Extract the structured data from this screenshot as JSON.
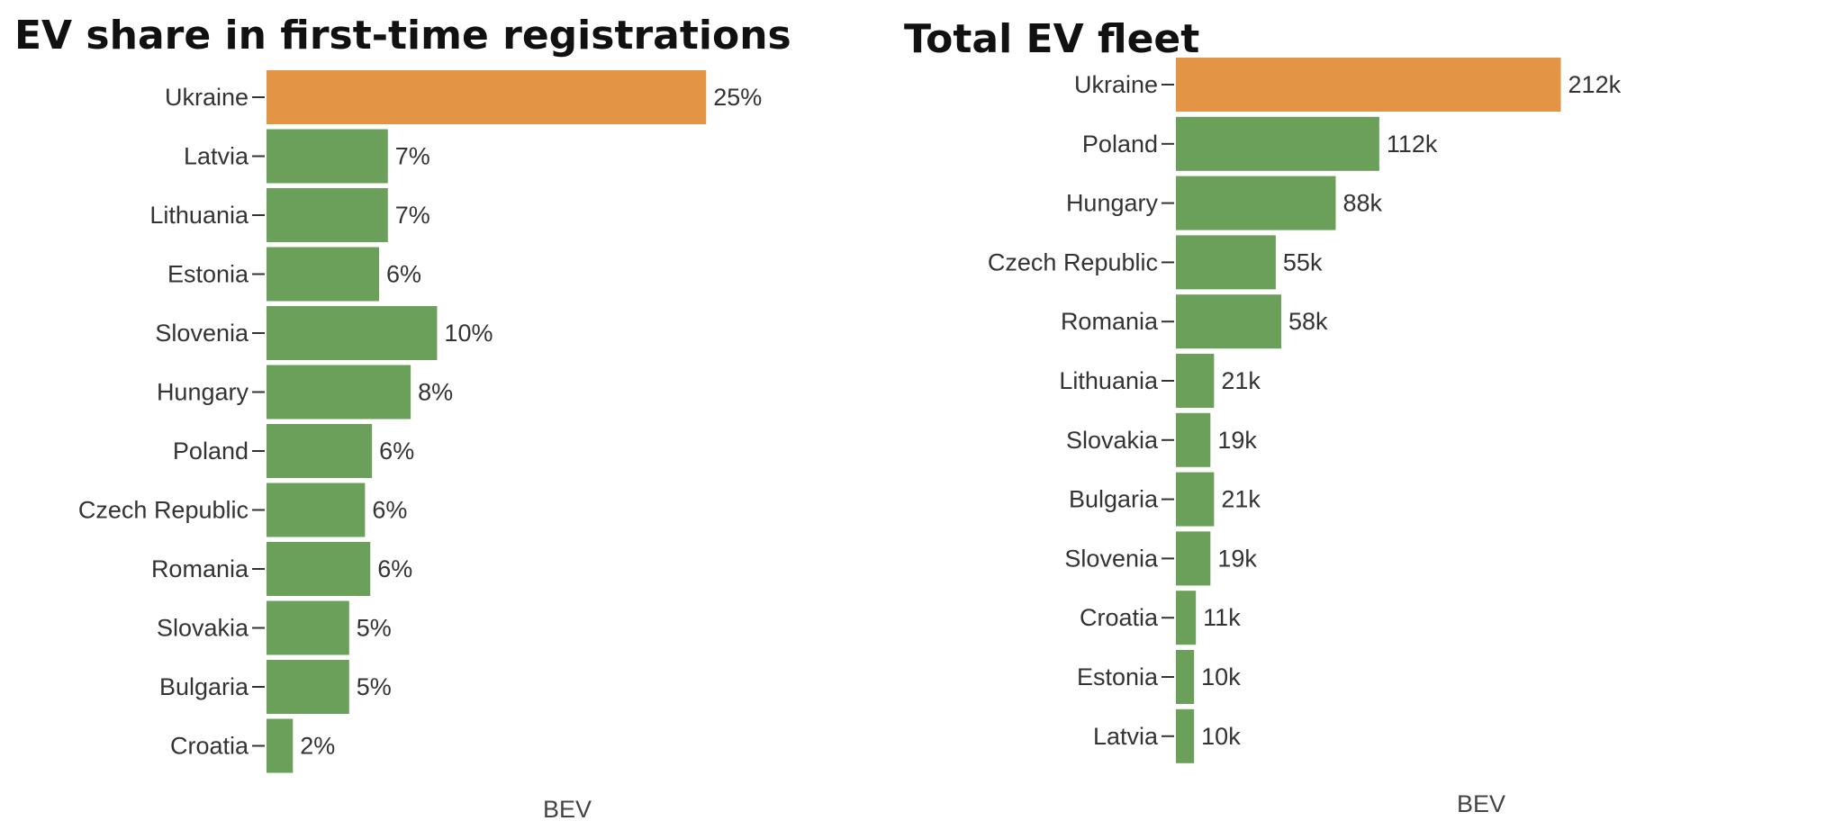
{
  "chart_data": [
    {
      "type": "bar",
      "orientation": "horizontal",
      "title": "EV share in first-time registrations",
      "xlabel": "BEV",
      "categories": [
        "Ukraine",
        "Latvia",
        "Lithuania",
        "Estonia",
        "Slovenia",
        "Hungary",
        "Poland",
        "Czech Republic",
        "Romania",
        "Slovakia",
        "Bulgaria",
        "Croatia"
      ],
      "values": [
        25.0,
        6.9,
        6.9,
        6.4,
        9.7,
        8.2,
        6.0,
        5.6,
        5.9,
        4.7,
        4.7,
        1.5
      ],
      "data_labels": [
        "25%",
        "7%",
        "7%",
        "6%",
        "10%",
        "8%",
        "6%",
        "6%",
        "6%",
        "5%",
        "5%",
        "2%"
      ],
      "highlight_category": "Ukraine",
      "colors": {
        "highlight": "#E39545",
        "default": "#6BA05A"
      },
      "xlim": [
        0,
        34
      ],
      "grid": false,
      "legend": "none"
    },
    {
      "type": "bar",
      "orientation": "horizontal",
      "title": "Total EV fleet",
      "xlabel": "BEV",
      "categories": [
        "Ukraine",
        "Poland",
        "Hungary",
        "Czech Republic",
        "Romania",
        "Lithuania",
        "Slovakia",
        "Bulgaria",
        "Slovenia",
        "Croatia",
        "Estonia",
        "Latvia"
      ],
      "values": [
        212,
        112,
        88,
        55,
        58,
        21,
        19,
        21,
        19,
        11,
        10,
        10
      ],
      "data_labels": [
        "212k",
        "112k",
        "88k",
        "55k",
        "58k",
        "21k",
        "19k",
        "21k",
        "19k",
        "11k",
        "10k",
        "10k"
      ],
      "highlight_category": "Ukraine",
      "colors": {
        "highlight": "#E39545",
        "default": "#6BA05A"
      },
      "xlim": [
        0,
        360
      ],
      "grid": false,
      "legend": "none"
    }
  ]
}
